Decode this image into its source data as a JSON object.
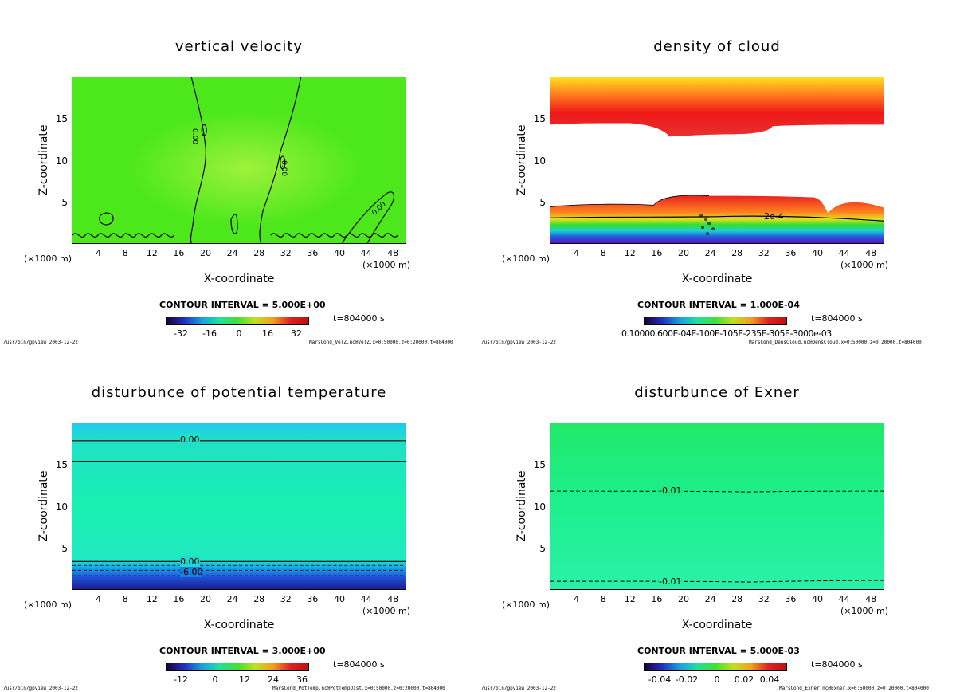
{
  "common": {
    "xlabel": "X-coordinate",
    "ylabel": "Z-coordinate",
    "xunit_left": "(×1000 m)",
    "xunit_right": "(×1000 m)",
    "xticks": [
      "4",
      "8",
      "12",
      "16",
      "20",
      "24",
      "28",
      "32",
      "36",
      "40",
      "44",
      "48"
    ],
    "yticks": [
      "5",
      "10",
      "15"
    ],
    "time": "t=804000 s",
    "footer_left": "/usr/bin/gpview  2003-12-22"
  },
  "chart_data": [
    {
      "type": "heatmap",
      "title": "vertical velocity",
      "xlabel": "X-coordinate",
      "ylabel": "Z-coordinate",
      "xlim": [
        0,
        50
      ],
      "ylim": [
        0,
        20
      ],
      "contour_interval": "CONTOUR INTERVAL = 5.000E+00",
      "colorbar_ticks": [
        "-32",
        "-16",
        "0",
        "16",
        "32"
      ],
      "contour_labels": [
        "0.00",
        "0.00",
        "0.00"
      ],
      "footer": "MarsCond_VelZ.nc@VelZ,x=0:50000,z=0:20000,t=804000",
      "time": "t=804000 s"
    },
    {
      "type": "heatmap",
      "title": "density of cloud",
      "xlabel": "X-coordinate",
      "ylabel": "Z-coordinate",
      "xlim": [
        0,
        50
      ],
      "ylim": [
        0,
        20
      ],
      "contour_interval": "CONTOUR INTERVAL = 1.000E-04",
      "colorbar_ticks_raw": "0.10000.600E-04E-100E-105E-235E-305E-3000e-03",
      "contour_labels": [
        "2e-4"
      ],
      "footer": "MarsCond_DensCloud.nc@DensCloud,x=0:50000,z=0:20000,t=804000",
      "time": "t=804000 s"
    },
    {
      "type": "heatmap",
      "title": "disturbunce of potential temperature",
      "xlabel": "X-coordinate",
      "ylabel": "Z-coordinate",
      "xlim": [
        0,
        50
      ],
      "ylim": [
        0,
        20
      ],
      "contour_interval": "CONTOUR INTERVAL = 3.000E+00",
      "colorbar_ticks": [
        "-12",
        "0",
        "12",
        "24",
        "36"
      ],
      "contour_labels": [
        "0.00",
        "0.00",
        "-6.00"
      ],
      "footer": "MarsCond_PotTemp.nc@PotTempDist,x=0:50000,z=0:20000,t=804000",
      "time": "t=804000 s"
    },
    {
      "type": "heatmap",
      "title": "disturbunce of Exner",
      "xlabel": "X-coordinate",
      "ylabel": "Z-coordinate",
      "xlim": [
        0,
        50
      ],
      "ylim": [
        0,
        20
      ],
      "contour_interval": "CONTOUR INTERVAL = 5.000E-03",
      "colorbar_ticks": [
        "-0.04",
        "-0.02",
        "0",
        "0.02",
        "0.04"
      ],
      "contour_labels": [
        "-0.01",
        "-0.01"
      ],
      "footer": "MarsCond_Exner.nc@Exner,x=0:50000,z=0:20000,t=804000",
      "time": "t=804000 s"
    }
  ]
}
